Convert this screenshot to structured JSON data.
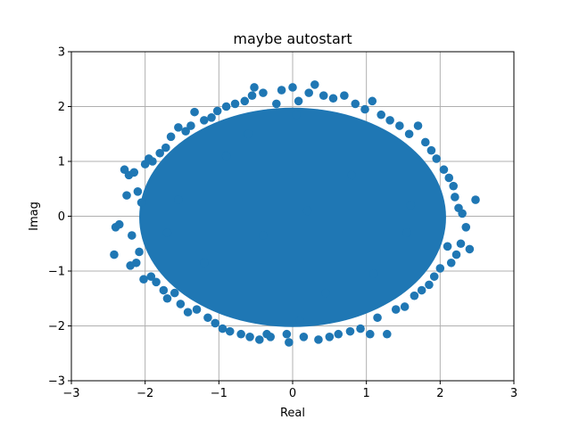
{
  "chart_data": {
    "type": "scatter",
    "title": "maybe autostart",
    "xlabel": "Real",
    "ylabel": "Imag",
    "xlim": [
      -3,
      3
    ],
    "ylim": [
      -3,
      3
    ],
    "grid": true,
    "marker_color": "#1f77b4",
    "x_ticks": [
      -3,
      -2,
      -1,
      0,
      1,
      2,
      3
    ],
    "y_ticks": [
      -3,
      -2,
      -1,
      0,
      1,
      2,
      3
    ],
    "x_tick_labels": [
      "−3",
      "−2",
      "−1",
      "0",
      "1",
      "2",
      "3"
    ],
    "y_tick_labels": [
      "−3",
      "−2",
      "−1",
      "0",
      "1",
      "2",
      "3"
    ],
    "series": [
      {
        "points": [
          [
            -2.42,
            -0.7
          ],
          [
            -2.4,
            -0.2
          ],
          [
            -2.35,
            -0.15
          ],
          [
            -2.28,
            0.85
          ],
          [
            -2.25,
            0.38
          ],
          [
            -2.22,
            0.75
          ],
          [
            -2.2,
            -0.9
          ],
          [
            -2.18,
            -0.35
          ],
          [
            -2.15,
            0.8
          ],
          [
            -2.12,
            -0.85
          ],
          [
            -2.1,
            0.45
          ],
          [
            -2.08,
            -0.65
          ],
          [
            -2.05,
            0.25
          ],
          [
            -2.02,
            -1.15
          ],
          [
            -2.0,
            0.95
          ],
          [
            -1.95,
            1.05
          ],
          [
            -1.92,
            -1.1
          ],
          [
            -1.9,
            1.0
          ],
          [
            -1.85,
            -1.2
          ],
          [
            -1.8,
            1.15
          ],
          [
            -1.75,
            -1.35
          ],
          [
            -1.72,
            1.25
          ],
          [
            -1.7,
            -1.5
          ],
          [
            -1.65,
            1.45
          ],
          [
            -1.6,
            -1.4
          ],
          [
            -1.55,
            1.62
          ],
          [
            -1.52,
            -1.6
          ],
          [
            -1.45,
            1.55
          ],
          [
            -1.42,
            -1.75
          ],
          [
            -1.38,
            1.65
          ],
          [
            -1.33,
            1.9
          ],
          [
            -1.3,
            -1.7
          ],
          [
            -1.2,
            1.75
          ],
          [
            -1.15,
            -1.85
          ],
          [
            -1.1,
            1.8
          ],
          [
            -1.05,
            -1.95
          ],
          [
            -1.02,
            1.92
          ],
          [
            -0.95,
            -2.05
          ],
          [
            -0.9,
            2.0
          ],
          [
            -0.85,
            -2.1
          ],
          [
            -0.78,
            2.05
          ],
          [
            -0.7,
            -2.15
          ],
          [
            -0.65,
            2.1
          ],
          [
            -0.58,
            -2.2
          ],
          [
            -0.55,
            2.2
          ],
          [
            -0.52,
            2.35
          ],
          [
            -0.45,
            -2.25
          ],
          [
            -0.4,
            2.25
          ],
          [
            -0.35,
            -2.15
          ],
          [
            -0.3,
            -2.2
          ],
          [
            -0.22,
            2.05
          ],
          [
            -0.15,
            2.3
          ],
          [
            -0.08,
            -2.15
          ],
          [
            0.0,
            2.35
          ],
          [
            -0.05,
            -2.3
          ],
          [
            0.08,
            2.1
          ],
          [
            0.15,
            -2.2
          ],
          [
            0.22,
            2.25
          ],
          [
            0.3,
            2.4
          ],
          [
            0.35,
            -2.25
          ],
          [
            0.42,
            2.2
          ],
          [
            0.5,
            -2.2
          ],
          [
            0.55,
            2.15
          ],
          [
            0.62,
            -2.15
          ],
          [
            0.7,
            2.2
          ],
          [
            0.78,
            -2.1
          ],
          [
            0.85,
            2.05
          ],
          [
            0.92,
            -2.05
          ],
          [
            0.98,
            1.95
          ],
          [
            1.05,
            -2.15
          ],
          [
            1.08,
            2.1
          ],
          [
            1.15,
            -1.85
          ],
          [
            1.2,
            1.85
          ],
          [
            1.28,
            -2.15
          ],
          [
            1.32,
            1.75
          ],
          [
            1.4,
            -1.7
          ],
          [
            1.45,
            1.65
          ],
          [
            1.52,
            -1.65
          ],
          [
            1.58,
            1.5
          ],
          [
            1.65,
            -1.45
          ],
          [
            1.7,
            1.65
          ],
          [
            1.75,
            -1.35
          ],
          [
            1.8,
            1.35
          ],
          [
            1.85,
            -1.25
          ],
          [
            1.88,
            1.2
          ],
          [
            1.92,
            -1.1
          ],
          [
            1.95,
            1.05
          ],
          [
            2.0,
            -0.95
          ],
          [
            2.05,
            0.85
          ],
          [
            2.1,
            -0.55
          ],
          [
            2.12,
            0.7
          ],
          [
            2.15,
            -0.85
          ],
          [
            2.18,
            0.55
          ],
          [
            2.2,
            0.35
          ],
          [
            2.22,
            -0.7
          ],
          [
            2.25,
            0.15
          ],
          [
            2.28,
            -0.5
          ],
          [
            2.3,
            0.05
          ],
          [
            2.35,
            -0.2
          ],
          [
            2.4,
            -0.6
          ],
          [
            2.48,
            0.3
          ],
          [
            1.55,
            -0.3
          ],
          [
            -1.55,
            0.3
          ],
          [
            0.2,
            0.1
          ],
          [
            -0.4,
            -0.35
          ],
          [
            0.8,
            0.75
          ],
          [
            -0.9,
            1.1
          ],
          [
            1.1,
            -1.05
          ],
          [
            -1.2,
            -0.85
          ],
          [
            0.45,
            -1.4
          ],
          [
            -0.6,
            1.5
          ],
          [
            1.6,
            0.2
          ],
          [
            -1.7,
            -0.3
          ],
          [
            0.05,
            1.85
          ],
          [
            0.1,
            -1.9
          ]
        ]
      }
    ]
  }
}
